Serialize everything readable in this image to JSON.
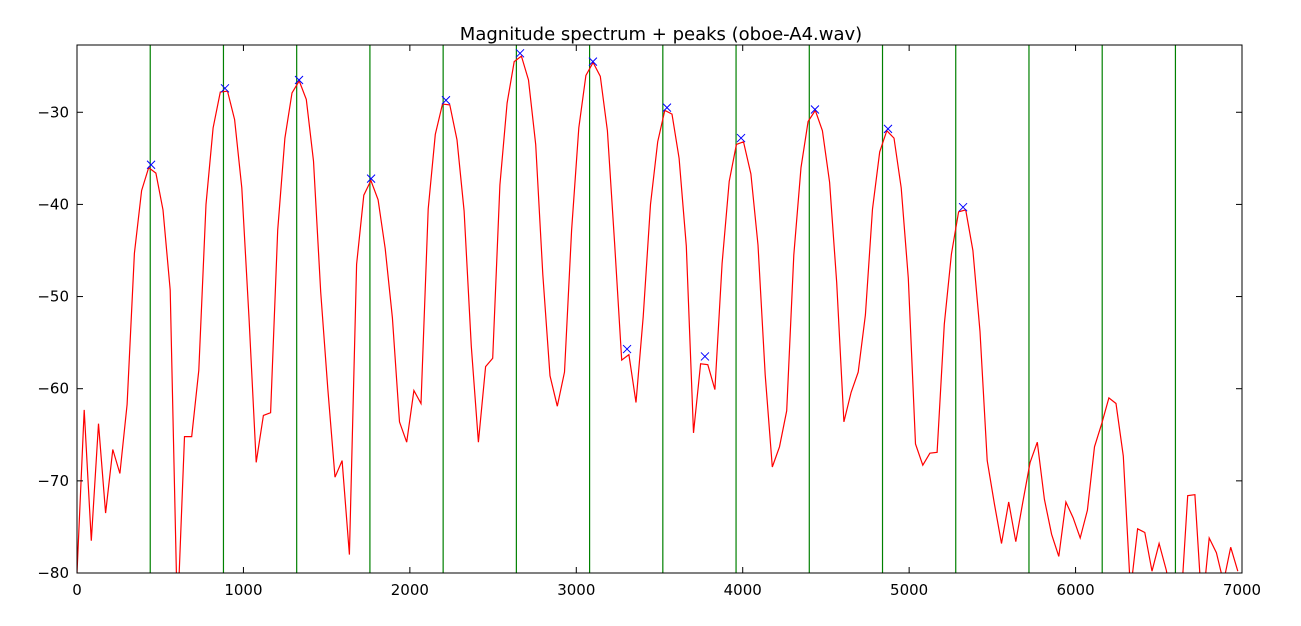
{
  "chart_data": {
    "type": "line",
    "title": "Magnitude spectrum + peaks (oboe-A4.wav)",
    "xlim": [
      0,
      7000
    ],
    "ylim": [
      -80,
      -22.7
    ],
    "xticks": [
      0,
      1000,
      2000,
      3000,
      4000,
      5000,
      6000,
      7000
    ],
    "yticks": [
      {
        "value": -80,
        "label": "−80"
      },
      {
        "value": -70,
        "label": "−70"
      },
      {
        "value": -60,
        "label": "−60"
      },
      {
        "value": -50,
        "label": "−50"
      },
      {
        "value": -40,
        "label": "−40"
      },
      {
        "value": -30,
        "label": "−30"
      }
    ],
    "vlines": {
      "color": "#008000",
      "values": [
        440,
        880,
        1320,
        1760,
        2200,
        2640,
        3080,
        3520,
        3960,
        4400,
        4840,
        5280,
        5720,
        6160,
        6600
      ]
    },
    "series": [
      {
        "color": "#ff0000",
        "marker": "line",
        "x": [
          0,
          43,
          86,
          129,
          172,
          215,
          258,
          301,
          345,
          388,
          431,
          474,
          517,
          560,
          603,
          646,
          689,
          732,
          775,
          818,
          861,
          904,
          947,
          990,
          1034,
          1077,
          1120,
          1163,
          1206,
          1249,
          1292,
          1335,
          1378,
          1421,
          1464,
          1507,
          1550,
          1593,
          1637,
          1680,
          1723,
          1766,
          1809,
          1852,
          1895,
          1938,
          1981,
          2024,
          2067,
          2110,
          2153,
          2196,
          2240,
          2283,
          2326,
          2369,
          2412,
          2455,
          2498,
          2541,
          2584,
          2627,
          2670,
          2713,
          2756,
          2799,
          2842,
          2886,
          2929,
          2972,
          3015,
          3058,
          3101,
          3144,
          3187,
          3230,
          3273,
          3316,
          3359,
          3402,
          3446,
          3489,
          3532,
          3575,
          3618,
          3661,
          3704,
          3747,
          3790,
          3833,
          3876,
          3919,
          3962,
          4005,
          4049,
          4092,
          4135,
          4178,
          4221,
          4264,
          4307,
          4350,
          4393,
          4436,
          4479,
          4522,
          4565,
          4608,
          4651,
          4694,
          4737,
          4780,
          4823,
          4866,
          4909,
          4952,
          4995,
          5038,
          5082,
          5125,
          5168,
          5211,
          5254,
          5297,
          5340,
          5383,
          5426,
          5469,
          5512,
          5555,
          5598,
          5641,
          5684,
          5727,
          5770,
          5813,
          5856,
          5899,
          5942,
          5985,
          6028,
          6071,
          6114,
          6157,
          6200,
          6243,
          6287,
          6330,
          6373,
          6416,
          6459,
          6502,
          6545,
          6588,
          6631,
          6674,
          6717,
          6760,
          6803,
          6846,
          6889,
          6932,
          6975
        ],
        "values": [
          -80,
          -62.3,
          -76.5,
          -63.8,
          -73.5,
          -66.6,
          -69.2,
          -61.7,
          -45.3,
          -38.5,
          -36,
          -36.6,
          -40.6,
          -49.3,
          -85,
          -65.2,
          -65.2,
          -58,
          -40,
          -31.7,
          -27.8,
          -27.7,
          -30.8,
          -38.2,
          -52.5,
          -68,
          -62.9,
          -62.6,
          -42.8,
          -32.8,
          -27.9,
          -26.6,
          -28.6,
          -35.3,
          -49.5,
          -60,
          -69.6,
          -67.8,
          -78,
          -46.5,
          -39,
          -37.4,
          -39.5,
          -44.8,
          -52.3,
          -63.6,
          -65.8,
          -60.2,
          -61.6,
          -40.5,
          -32.4,
          -29.1,
          -29.2,
          -33,
          -40.7,
          -55.4,
          -65.8,
          -57.6,
          -56.7,
          -37.9,
          -29,
          -24.5,
          -23.9,
          -26.5,
          -33.5,
          -47.6,
          -58.6,
          -61.9,
          -58.2,
          -42.8,
          -31.7,
          -26,
          -24.6,
          -26.1,
          -32,
          -44.2,
          -56.9,
          -56.3,
          -61.5,
          -52.2,
          -40,
          -33.2,
          -29.8,
          -30.2,
          -35,
          -44.5,
          -64.8,
          -57.3,
          -57.4,
          -60.1,
          -46.4,
          -37.5,
          -33.5,
          -33.2,
          -36.7,
          -44.4,
          -58.5,
          -68.5,
          -66.3,
          -62.4,
          -45.5,
          -36,
          -31,
          -29.8,
          -32,
          -37.6,
          -48.5,
          -63.6,
          -60.4,
          -58.2,
          -52,
          -40.5,
          -34.3,
          -32,
          -32.8,
          -38.2,
          -48,
          -66,
          -68.3,
          -67,
          -66.9,
          -53,
          -45.4,
          -40.8,
          -40.6,
          -45,
          -53.8,
          -67.8,
          -72.5,
          -76.8,
          -72.3,
          -76.6,
          -72.2,
          -68,
          -65.8,
          -72,
          -75.8,
          -78.2,
          -72.3,
          -74,
          -76.2,
          -73.2,
          -66.3,
          -63.8,
          -61,
          -61.6,
          -67.3,
          -82,
          -75.2,
          -75.6,
          -79.8,
          -76.8,
          -79.7,
          -84,
          -84,
          -71.6,
          -71.5,
          -84,
          -76.2,
          -77.8,
          -81,
          -77.2,
          -79.8
        ]
      },
      {
        "color": "#0000ff",
        "marker": "x",
        "x": [
          445,
          889,
          1334,
          1767,
          2217,
          2662,
          3100,
          3305,
          3545,
          3773,
          3990,
          4434,
          4873,
          5324
        ],
        "values": [
          -35.7,
          -27.4,
          -26.5,
          -37.2,
          -28.7,
          -23.6,
          -24.5,
          -55.7,
          -29.5,
          -56.5,
          -32.8,
          -29.7,
          -31.8,
          -40.3
        ]
      }
    ]
  }
}
